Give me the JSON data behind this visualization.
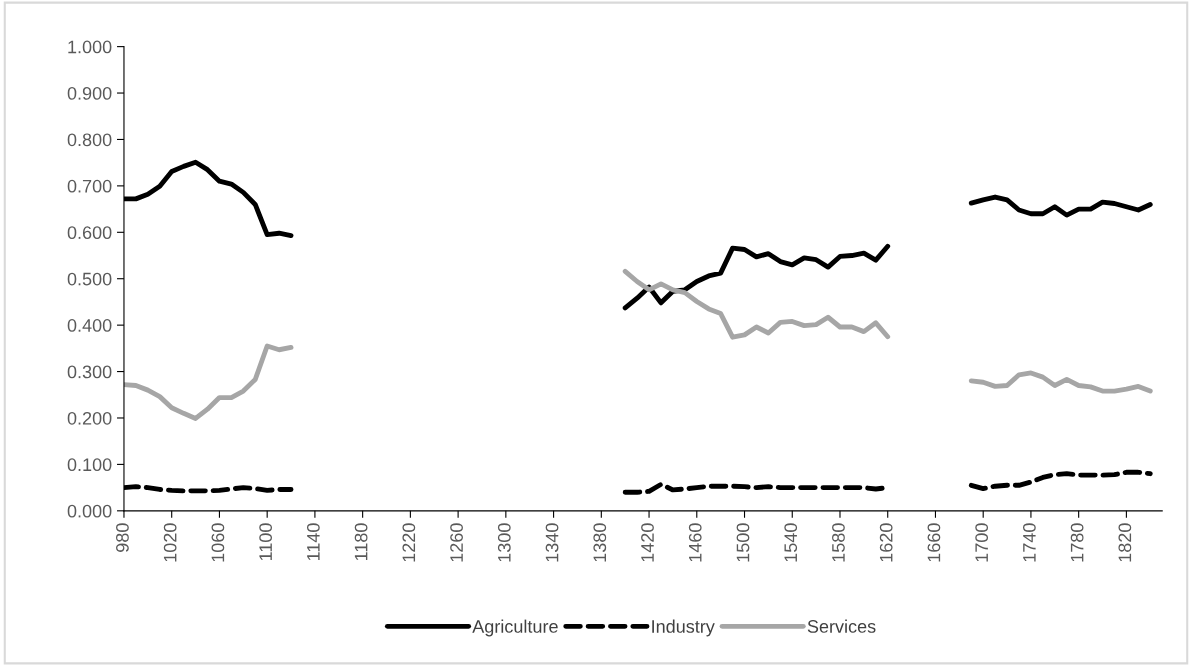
{
  "chart_data": {
    "type": "line",
    "x": [
      980,
      990,
      1000,
      1010,
      1020,
      1030,
      1040,
      1050,
      1060,
      1070,
      1080,
      1090,
      1100,
      1110,
      1120,
      1130,
      1140,
      1150,
      1160,
      1170,
      1180,
      1190,
      1200,
      1210,
      1220,
      1230,
      1240,
      1250,
      1260,
      1270,
      1280,
      1290,
      1300,
      1310,
      1320,
      1330,
      1340,
      1350,
      1360,
      1370,
      1380,
      1390,
      1400,
      1410,
      1420,
      1430,
      1440,
      1450,
      1460,
      1470,
      1480,
      1490,
      1500,
      1510,
      1520,
      1530,
      1540,
      1550,
      1560,
      1570,
      1580,
      1590,
      1600,
      1610,
      1620,
      1630,
      1640,
      1650,
      1660,
      1670,
      1680,
      1690,
      1700,
      1710,
      1720,
      1730,
      1740,
      1750,
      1760,
      1770,
      1780,
      1790,
      1800,
      1810,
      1820,
      1830,
      1840
    ],
    "series": [
      {
        "name": "Agriculture",
        "color": "#000000",
        "line_style": "solid",
        "values": [
          0.672,
          0.672,
          0.682,
          0.699,
          0.731,
          0.742,
          0.751,
          0.735,
          0.71,
          0.704,
          0.686,
          0.66,
          0.595,
          0.598,
          0.593,
          null,
          null,
          null,
          null,
          null,
          null,
          null,
          null,
          null,
          null,
          null,
          null,
          null,
          null,
          null,
          null,
          null,
          null,
          null,
          null,
          null,
          null,
          null,
          null,
          null,
          null,
          null,
          0.437,
          0.458,
          0.482,
          0.448,
          0.473,
          0.476,
          0.494,
          0.506,
          0.512,
          0.566,
          0.563,
          0.547,
          0.554,
          0.537,
          0.53,
          0.545,
          0.541,
          0.525,
          0.548,
          0.55,
          0.555,
          0.54,
          0.57,
          null,
          null,
          null,
          null,
          null,
          null,
          0.663,
          0.67,
          0.676,
          0.67,
          0.648,
          0.64,
          0.64,
          0.655,
          0.637,
          0.65,
          0.65,
          0.665,
          0.662,
          0.655,
          0.648,
          0.66
        ]
      },
      {
        "name": "Industry",
        "color": "#000000",
        "line_style": "dashed",
        "values": [
          0.05,
          0.052,
          0.05,
          0.046,
          0.044,
          0.043,
          0.043,
          0.043,
          0.044,
          0.047,
          0.05,
          0.048,
          0.044,
          0.046,
          0.046,
          null,
          null,
          null,
          null,
          null,
          null,
          null,
          null,
          null,
          null,
          null,
          null,
          null,
          null,
          null,
          null,
          null,
          null,
          null,
          null,
          null,
          null,
          null,
          null,
          null,
          null,
          null,
          0.04,
          0.04,
          0.042,
          0.057,
          0.045,
          0.047,
          0.05,
          0.053,
          0.053,
          0.053,
          0.052,
          0.05,
          0.052,
          0.05,
          0.05,
          0.05,
          0.05,
          0.05,
          0.05,
          0.05,
          0.05,
          0.047,
          0.05,
          null,
          null,
          null,
          null,
          null,
          null,
          0.055,
          0.048,
          0.053,
          0.055,
          0.055,
          0.062,
          0.072,
          0.078,
          0.08,
          0.077,
          0.077,
          0.077,
          0.078,
          0.083,
          0.083,
          0.08
        ]
      },
      {
        "name": "Services",
        "color": "#a6a6a6",
        "line_style": "solid",
        "values": [
          0.272,
          0.27,
          0.26,
          0.246,
          0.222,
          0.21,
          0.199,
          0.219,
          0.244,
          0.244,
          0.258,
          0.283,
          0.355,
          0.347,
          0.352,
          null,
          null,
          null,
          null,
          null,
          null,
          null,
          null,
          null,
          null,
          null,
          null,
          null,
          null,
          null,
          null,
          null,
          null,
          null,
          null,
          null,
          null,
          null,
          null,
          null,
          null,
          null,
          0.516,
          0.494,
          0.476,
          0.489,
          0.476,
          0.47,
          0.451,
          0.435,
          0.425,
          0.374,
          0.379,
          0.396,
          0.383,
          0.406,
          0.408,
          0.399,
          0.401,
          0.417,
          0.396,
          0.396,
          0.386,
          0.405,
          0.375,
          null,
          null,
          null,
          null,
          null,
          null,
          0.28,
          0.277,
          0.268,
          0.27,
          0.293,
          0.297,
          0.288,
          0.27,
          0.283,
          0.27,
          0.267,
          0.258,
          0.258,
          0.262,
          0.268,
          0.258
        ]
      }
    ],
    "xlim": [
      980,
      1850
    ],
    "xticks": [
      980,
      1020,
      1060,
      1100,
      1140,
      1180,
      1220,
      1260,
      1300,
      1340,
      1380,
      1420,
      1460,
      1500,
      1540,
      1580,
      1620,
      1660,
      1700,
      1740,
      1780,
      1820
    ],
    "ylim": [
      0,
      1
    ],
    "yticks": [
      {
        "value": 0,
        "label": "0.000"
      },
      {
        "value": 0.1,
        "label": "0.100"
      },
      {
        "value": 0.2,
        "label": "0.200"
      },
      {
        "value": 0.3,
        "label": "0.300"
      },
      {
        "value": 0.4,
        "label": "0.400"
      },
      {
        "value": 0.5,
        "label": "0.500"
      },
      {
        "value": 0.6,
        "label": "0.600"
      },
      {
        "value": 0.7,
        "label": "0.700"
      },
      {
        "value": 0.8,
        "label": "0.800"
      },
      {
        "value": 0.9,
        "label": "0.900"
      },
      {
        "value": 1,
        "label": "1.000"
      }
    ],
    "grid": false,
    "legend": "bottom"
  }
}
